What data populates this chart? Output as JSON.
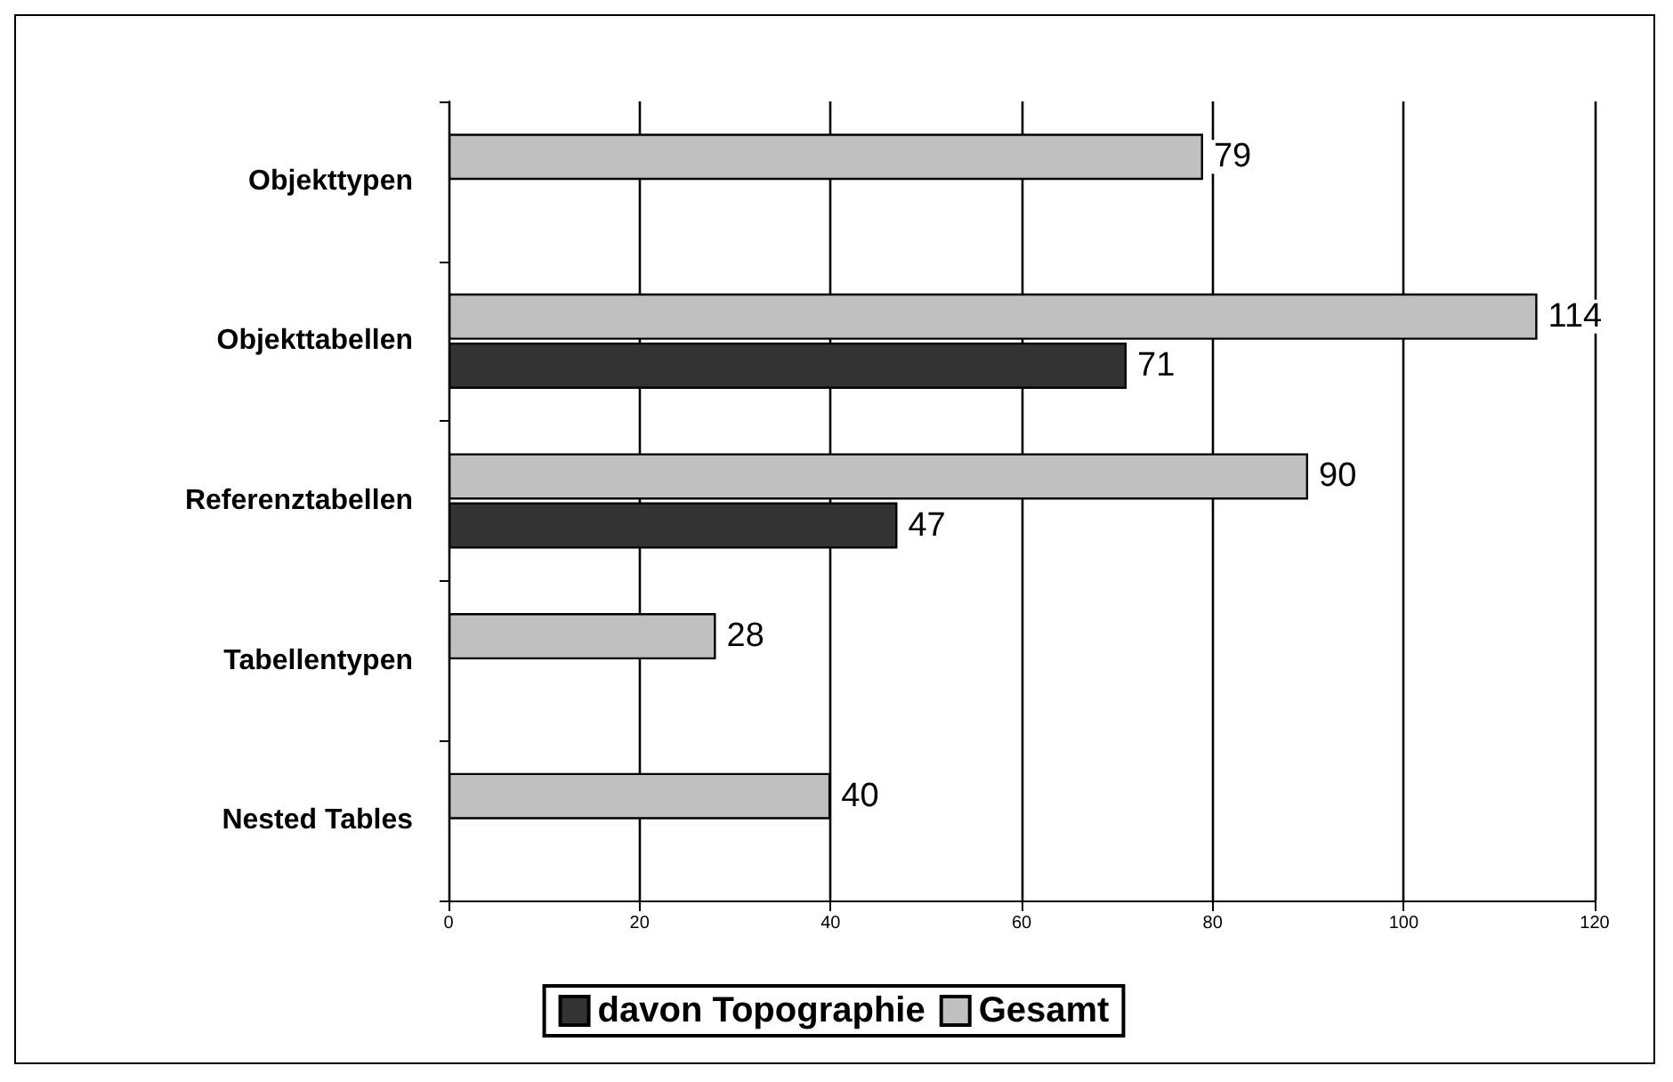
{
  "chart_data": {
    "type": "bar",
    "orientation": "horizontal",
    "categories": [
      "Objekttypen",
      "Objekttabellen",
      "Referenztabellen",
      "Tabellentypen",
      "Nested Tables"
    ],
    "series": [
      {
        "name": "davon Topographie",
        "color": "#333333",
        "values": [
          null,
          71,
          47,
          null,
          null
        ]
      },
      {
        "name": "Gesamt",
        "color": "#c0c0c0",
        "values": [
          79,
          114,
          90,
          28,
          40
        ]
      }
    ],
    "xlim": [
      0,
      120
    ],
    "xticks": [
      0,
      20,
      40,
      60,
      80,
      100,
      120
    ],
    "grid": "x",
    "legend": "bottom",
    "data_labels": true
  }
}
